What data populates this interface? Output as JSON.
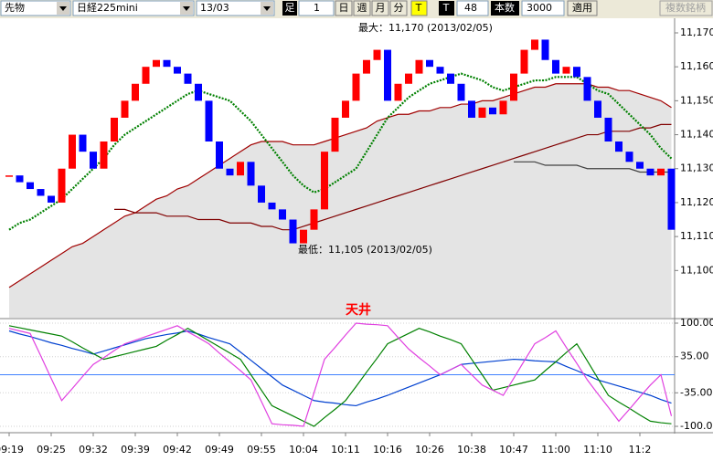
{
  "toolbar": {
    "market": "先物",
    "symbol": "日経225mini",
    "contract": "13/03",
    "bar_label": "足",
    "bar_size": 1,
    "periods": [
      "日",
      "週",
      "月",
      "分"
    ],
    "tick_button": "T",
    "tick_label": "T",
    "tick_count": 48,
    "count_label": "本数",
    "count": 3000,
    "apply": "適用",
    "multi": "複数銘柄"
  },
  "chart_data": [
    {
      "type": "candlestick",
      "annotations": [
        "最大：11,170 (2013/02/05)",
        "最低：11,105 (2013/02/05)"
      ],
      "up_color": "#ff0000",
      "down_color": "#0000ff",
      "closes": [
        11128,
        11126,
        11124,
        11122,
        11120,
        11130,
        11140,
        11135,
        11130,
        11138,
        11145,
        11150,
        11155,
        11160,
        11162,
        11160,
        11158,
        11155,
        11150,
        11138,
        11130,
        11128,
        11132,
        11125,
        11120,
        11118,
        11115,
        11108,
        11112,
        11118,
        11135,
        11145,
        11150,
        11158,
        11162,
        11165,
        11150,
        11155,
        11158,
        11162,
        11160,
        11158,
        11155,
        11150,
        11145,
        11148,
        11146,
        11150,
        11158,
        11165,
        11168,
        11162,
        11158,
        11160,
        11157,
        11150,
        11145,
        11138,
        11135,
        11132,
        11130,
        11128,
        11130,
        11112
      ],
      "series": [
        {
          "color": "#a00000",
          "values": [
            11095,
            11097,
            11099,
            11101,
            11103,
            11105,
            11107,
            11108,
            11110,
            11112,
            11114,
            11116,
            11117,
            11119,
            11121,
            11122,
            11124,
            11125,
            11127,
            11129,
            11131,
            11133,
            11135,
            11137,
            11138,
            11138,
            11138,
            11137,
            11137,
            11137,
            11138,
            11139,
            11140,
            11141,
            11142,
            11144,
            11145,
            11146,
            11146,
            11147,
            11147,
            11148,
            11148,
            11149,
            11149,
            11150,
            11150,
            11151,
            11152,
            11153,
            11154,
            11154,
            11155,
            11155,
            11155,
            11155,
            11154,
            11154,
            11153,
            11153,
            11152,
            11151,
            11150,
            11148
          ]
        },
        {
          "color": "#800000",
          "values": [
            null,
            null,
            null,
            null,
            null,
            null,
            null,
            null,
            null,
            null,
            11118,
            11118,
            11117,
            11117,
            11117,
            11116,
            11116,
            11116,
            11115,
            11115,
            11115,
            11114,
            11114,
            11114,
            11113,
            11113,
            11112,
            11112,
            11113,
            11114,
            11115,
            11116,
            11117,
            11118,
            11119,
            11120,
            11121,
            11122,
            11123,
            11124,
            11125,
            11126,
            11127,
            11128,
            11129,
            11130,
            11131,
            11132,
            11133,
            11134,
            11135,
            11136,
            11137,
            11138,
            11139,
            11140,
            11140,
            11141,
            11141,
            11141,
            11142,
            11142,
            11143,
            11143
          ]
        },
        {
          "color": "#404040",
          "values": [
            null,
            null,
            null,
            null,
            null,
            null,
            null,
            null,
            null,
            null,
            null,
            null,
            null,
            null,
            null,
            null,
            null,
            null,
            null,
            null,
            null,
            null,
            null,
            null,
            null,
            null,
            null,
            null,
            null,
            null,
            null,
            null,
            null,
            null,
            null,
            null,
            null,
            null,
            null,
            null,
            null,
            null,
            null,
            null,
            null,
            null,
            null,
            null,
            11132,
            11132,
            11132,
            11131,
            11131,
            11131,
            11131,
            11130,
            11130,
            11130,
            11130,
            11130,
            11129,
            11129,
            11129,
            11129
          ]
        },
        {
          "color": "#008000",
          "style": "dotted",
          "values": [
            11112,
            11114,
            11115,
            11117,
            11119,
            11121,
            11124,
            11127,
            11130,
            11133,
            11137,
            11140,
            11142,
            11144,
            11146,
            11148,
            11150,
            11152,
            11153,
            11152,
            11151,
            11150,
            11147,
            11144,
            11140,
            11136,
            11132,
            11128,
            11125,
            11123,
            11124,
            11126,
            11128,
            11130,
            11135,
            11140,
            11145,
            11148,
            11151,
            11153,
            11155,
            11156,
            11157,
            11158,
            11157,
            11156,
            11154,
            11153,
            11154,
            11155,
            11156,
            11156,
            11157,
            11157,
            11157,
            11155,
            11153,
            11152,
            11149,
            11146,
            11143,
            11140,
            11136,
            11133
          ]
        }
      ],
      "ylim": [
        11086.1,
        11174.3
      ],
      "yticks": [
        {
          "value": 11100,
          "label": "11,100"
        },
        {
          "value": 11110,
          "label": "11,110"
        },
        {
          "value": 11120,
          "label": "11,120"
        },
        {
          "value": 11130,
          "label": "11,130"
        },
        {
          "value": 11140,
          "label": "11,140"
        },
        {
          "value": 11150,
          "label": "11,150"
        },
        {
          "value": 11160,
          "label": "11,160"
        },
        {
          "value": 11170,
          "label": "11,170"
        }
      ]
    },
    {
      "type": "line",
      "annotation": "天井",
      "categories": [
        "09:19",
        null,
        null,
        null,
        "09:25",
        null,
        null,
        null,
        "09:32",
        null,
        null,
        null,
        "09:39",
        null,
        null,
        null,
        "09:42",
        null,
        null,
        null,
        "09:49",
        null,
        null,
        null,
        "09:55",
        null,
        null,
        null,
        "10:04",
        null,
        null,
        null,
        "10:11",
        null,
        null,
        null,
        "10:16",
        null,
        null,
        null,
        "10:26",
        null,
        null,
        null,
        "10:38",
        null,
        null,
        null,
        "10:47",
        null,
        null,
        null,
        "11:00",
        null,
        null,
        null,
        "11:10",
        null,
        null,
        null,
        "11:2",
        null,
        null,
        null
      ],
      "reference_line": 0,
      "reference_color": "#4080ff",
      "series": [
        {
          "color": "#0040d0",
          "values": [
            85,
            79,
            74,
            68,
            62,
            57,
            51,
            46,
            40,
            46,
            52,
            58,
            64,
            70,
            74,
            78,
            81,
            85,
            79,
            72,
            66,
            60,
            44,
            28,
            12,
            -4,
            -20,
            -30,
            -40,
            -50,
            -53,
            -55,
            -58,
            -60,
            -53,
            -47,
            -40,
            -32,
            -24,
            -16,
            -8,
            0,
            10,
            20,
            22,
            24,
            26,
            28,
            30,
            29,
            27,
            26,
            25,
            16,
            8,
            -1,
            -10,
            -16,
            -22,
            -28,
            -34,
            -40,
            -48,
            -55
          ]
        },
        {
          "color": "#008000",
          "values": [
            95,
            91,
            87,
            83,
            79,
            75,
            64,
            52,
            41,
            30,
            35,
            40,
            45,
            50,
            55,
            67,
            78,
            90,
            78,
            66,
            54,
            42,
            30,
            0,
            -30,
            -60,
            -70,
            -80,
            -90,
            -100,
            -83,
            -67,
            -50,
            -23,
            5,
            32,
            60,
            70,
            80,
            90,
            83,
            75,
            68,
            60,
            30,
            0,
            -30,
            -25,
            -20,
            -15,
            -10,
            8,
            25,
            43,
            60,
            27,
            -7,
            -40,
            -53,
            -65,
            -78,
            -90,
            -93,
            -95
          ]
        },
        {
          "color": "#e040e0",
          "values": [
            90,
            85,
            80,
            37,
            -7,
            -50,
            -27,
            -3,
            20,
            33,
            47,
            60,
            67,
            74,
            81,
            88,
            95,
            83,
            72,
            60,
            42,
            25,
            8,
            -10,
            -52,
            -95,
            -97,
            -98,
            -100,
            -35,
            30,
            53,
            77,
            100,
            98,
            97,
            95,
            72,
            50,
            33,
            17,
            0,
            10,
            20,
            0,
            -20,
            -30,
            -40,
            -7,
            27,
            60,
            72,
            85,
            53,
            22,
            -10,
            -37,
            -63,
            -90,
            -67,
            -43,
            -20,
            0,
            -80
          ]
        }
      ],
      "ylim": [
        -108.8,
        107.1
      ],
      "yticks": [
        {
          "value": 100,
          "label": "100.00"
        },
        {
          "value": 35,
          "label": "35.00"
        },
        {
          "value": -35,
          "label": "-35.00"
        },
        {
          "value": -100,
          "label": "-100.0"
        }
      ]
    }
  ]
}
